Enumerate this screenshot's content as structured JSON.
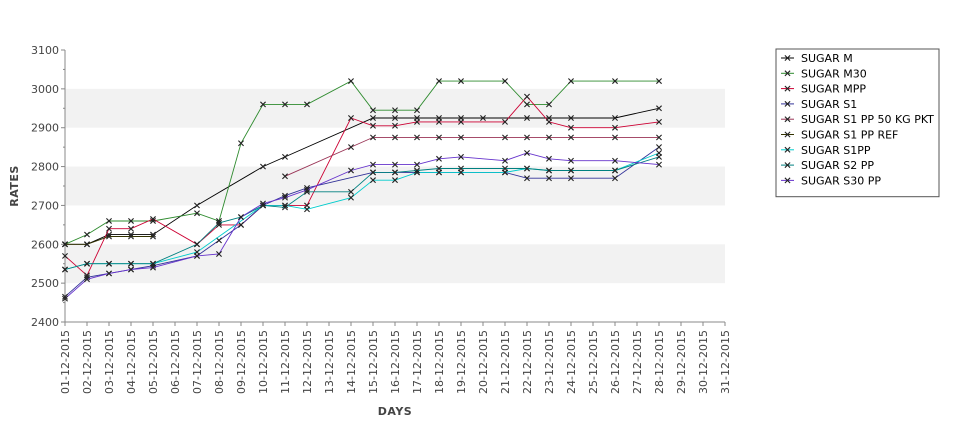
{
  "chart_data": {
    "type": "line",
    "title": "",
    "xlabel": "DAYS",
    "ylabel": "RATES",
    "ylim": [
      2400,
      3100
    ],
    "yticks": [
      2400,
      2500,
      2600,
      2700,
      2800,
      2900,
      3000,
      3100
    ],
    "grid": "alternating horizontal bands",
    "legend_position": "right",
    "categories": [
      "01-12-2015",
      "02-12-2015",
      "03-12-2015",
      "04-12-2015",
      "05-12-2015",
      "06-12-2015",
      "07-12-2015",
      "08-12-2015",
      "09-12-2015",
      "10-12-2015",
      "11-12-2015",
      "12-12-2015",
      "13-12-2015",
      "14-12-2015",
      "15-12-2015",
      "16-12-2015",
      "17-12-2015",
      "18-12-2015",
      "19-12-2015",
      "20-12-2015",
      "21-12-2015",
      "22-12-2015",
      "23-12-2015",
      "24-12-2015",
      "25-12-2015",
      "26-12-2015",
      "27-12-2015",
      "28-12-2015",
      "29-12-2015",
      "30-12-2015",
      "31-12-2015"
    ],
    "series": [
      {
        "name": "SUGAR M",
        "color": "#000000",
        "points": [
          [
            0,
            2600
          ],
          [
            1,
            2600
          ],
          [
            2,
            2625
          ],
          [
            3,
            2625
          ],
          [
            4,
            2625
          ],
          [
            6,
            2700
          ],
          [
            9,
            2800
          ],
          [
            10,
            2825
          ],
          [
            14,
            2925
          ],
          [
            15,
            2925
          ],
          [
            16,
            2925
          ],
          [
            17,
            2925
          ],
          [
            18,
            2925
          ],
          [
            19,
            2925
          ],
          [
            21,
            2925
          ],
          [
            22,
            2925
          ],
          [
            23,
            2925
          ],
          [
            25,
            2925
          ],
          [
            27,
            2950
          ]
        ]
      },
      {
        "name": "SUGAR M30",
        "color": "#2e8b2e",
        "points": [
          [
            0,
            2600
          ],
          [
            1,
            2625
          ],
          [
            2,
            2660
          ],
          [
            3,
            2660
          ],
          [
            4,
            2660
          ],
          [
            6,
            2680
          ],
          [
            7,
            2660
          ],
          [
            8,
            2860
          ],
          [
            9,
            2960
          ],
          [
            10,
            2960
          ],
          [
            11,
            2960
          ],
          [
            13,
            3020
          ],
          [
            14,
            2945
          ],
          [
            15,
            2945
          ],
          [
            16,
            2945
          ],
          [
            17,
            3020
          ],
          [
            18,
            3020
          ],
          [
            20,
            3020
          ],
          [
            21,
            2960
          ],
          [
            22,
            2960
          ],
          [
            23,
            3020
          ],
          [
            25,
            3020
          ],
          [
            27,
            3020
          ]
        ]
      },
      {
        "name": "SUGAR MPP",
        "color": "#cc0033",
        "points": [
          [
            0,
            2570
          ],
          [
            1,
            2520
          ],
          [
            2,
            2640
          ],
          [
            3,
            2640
          ],
          [
            4,
            2665
          ],
          [
            6,
            2600
          ],
          [
            7,
            2650
          ],
          [
            8,
            2650
          ],
          [
            9,
            2700
          ],
          [
            10,
            2700
          ],
          [
            11,
            2700
          ],
          [
            13,
            2925
          ],
          [
            14,
            2905
          ],
          [
            15,
            2905
          ],
          [
            16,
            2915
          ],
          [
            17,
            2915
          ],
          [
            18,
            2915
          ],
          [
            20,
            2915
          ],
          [
            21,
            2980
          ],
          [
            22,
            2915
          ],
          [
            23,
            2900
          ],
          [
            25,
            2900
          ],
          [
            27,
            2915
          ]
        ]
      },
      {
        "name": "SUGAR S1",
        "color": "#333399",
        "points": [
          [
            0,
            2465
          ],
          [
            1,
            2515
          ],
          [
            2,
            2525
          ],
          [
            3,
            2535
          ],
          [
            4,
            2545
          ],
          [
            6,
            2570
          ],
          [
            7,
            2610
          ],
          [
            8,
            2650
          ],
          [
            9,
            2700
          ],
          [
            10,
            2725
          ],
          [
            11,
            2745
          ],
          [
            14,
            2785
          ],
          [
            15,
            2785
          ],
          [
            16,
            2785
          ],
          [
            17,
            2785
          ],
          [
            18,
            2785
          ],
          [
            20,
            2785
          ],
          [
            21,
            2770
          ],
          [
            22,
            2770
          ],
          [
            23,
            2770
          ],
          [
            25,
            2770
          ],
          [
            27,
            2850
          ]
        ]
      },
      {
        "name": "SUGAR S1 PP 50 KG PKT",
        "color": "#993355",
        "points": [
          [
            10,
            2775
          ],
          [
            13,
            2850
          ],
          [
            14,
            2875
          ],
          [
            15,
            2875
          ],
          [
            16,
            2875
          ],
          [
            17,
            2875
          ],
          [
            18,
            2875
          ],
          [
            20,
            2875
          ],
          [
            21,
            2875
          ],
          [
            22,
            2875
          ],
          [
            23,
            2875
          ],
          [
            25,
            2875
          ],
          [
            27,
            2875
          ]
        ]
      },
      {
        "name": "SUGAR S1 PP REF",
        "color": "#333300",
        "points": [
          [
            0,
            2600
          ],
          [
            1,
            2600
          ],
          [
            2,
            2620
          ],
          [
            3,
            2620
          ],
          [
            4,
            2620
          ]
        ]
      },
      {
        "name": "SUGAR S1PP",
        "color": "#00cccc",
        "points": [
          [
            0,
            2535
          ],
          [
            1,
            2550
          ],
          [
            2,
            2550
          ],
          [
            3,
            2550
          ],
          [
            4,
            2550
          ],
          [
            6,
            2580
          ],
          [
            9,
            2700
          ],
          [
            10,
            2700
          ],
          [
            11,
            2690
          ],
          [
            13,
            2720
          ],
          [
            14,
            2765
          ],
          [
            15,
            2765
          ],
          [
            16,
            2785
          ],
          [
            17,
            2785
          ],
          [
            18,
            2785
          ],
          [
            20,
            2785
          ],
          [
            21,
            2795
          ],
          [
            22,
            2790
          ],
          [
            23,
            2790
          ],
          [
            25,
            2790
          ],
          [
            27,
            2835
          ]
        ]
      },
      {
        "name": "SUGAR S2 PP",
        "color": "#008080",
        "points": [
          [
            0,
            2535
          ],
          [
            1,
            2550
          ],
          [
            2,
            2550
          ],
          [
            3,
            2550
          ],
          [
            4,
            2550
          ],
          [
            6,
            2600
          ],
          [
            7,
            2655
          ],
          [
            8,
            2670
          ],
          [
            9,
            2700
          ],
          [
            10,
            2695
          ],
          [
            11,
            2735
          ],
          [
            13,
            2735
          ],
          [
            14,
            2785
          ],
          [
            15,
            2785
          ],
          [
            16,
            2790
          ],
          [
            17,
            2795
          ],
          [
            18,
            2795
          ],
          [
            20,
            2795
          ],
          [
            21,
            2795
          ],
          [
            22,
            2790
          ],
          [
            23,
            2790
          ],
          [
            25,
            2790
          ],
          [
            27,
            2825
          ]
        ]
      },
      {
        "name": "SUGAR S30 PP",
        "color": "#6633cc",
        "points": [
          [
            0,
            2460
          ],
          [
            1,
            2510
          ],
          [
            2,
            2525
          ],
          [
            3,
            2535
          ],
          [
            4,
            2540
          ],
          [
            6,
            2570
          ],
          [
            7,
            2575
          ],
          [
            8,
            2670
          ],
          [
            9,
            2705
          ],
          [
            10,
            2720
          ],
          [
            11,
            2740
          ],
          [
            13,
            2790
          ],
          [
            14,
            2805
          ],
          [
            15,
            2805
          ],
          [
            16,
            2805
          ],
          [
            17,
            2820
          ],
          [
            18,
            2825
          ],
          [
            20,
            2815
          ],
          [
            21,
            2835
          ],
          [
            22,
            2820
          ],
          [
            23,
            2815
          ],
          [
            25,
            2815
          ],
          [
            27,
            2805
          ]
        ]
      }
    ]
  }
}
